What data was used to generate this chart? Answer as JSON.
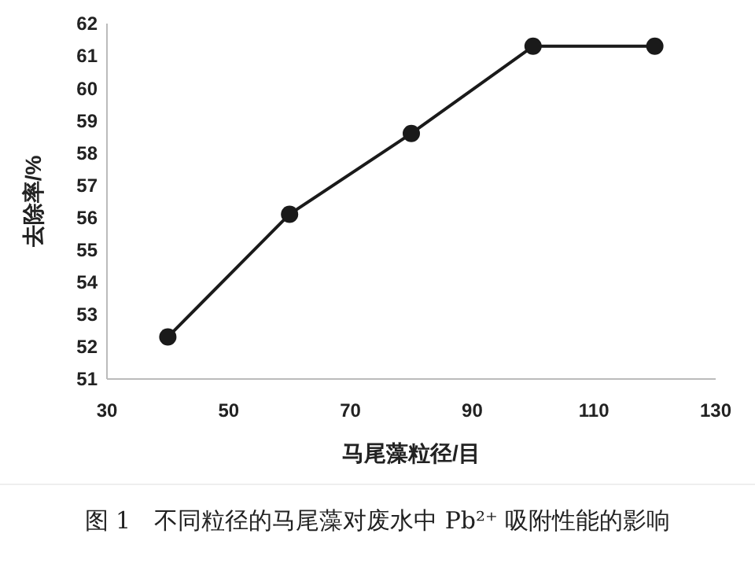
{
  "chart_data": {
    "type": "line",
    "xlabel": "马尾藻粒径/目",
    "ylabel": "去除率/%",
    "annotations": [
      "图 1　不同粒径的马尾藻对废水中 Pb²⁺ 吸附性能的影响"
    ],
    "x": [
      40,
      60,
      80,
      100,
      120
    ],
    "series": [
      {
        "color": "#1a1a1a",
        "values": [
          52.3,
          56.1,
          58.6,
          61.3,
          61.3
        ]
      }
    ],
    "xlim": [
      30,
      130
    ],
    "xticks": [
      30,
      50,
      70,
      90,
      110,
      130
    ],
    "ylim": [
      51,
      62
    ],
    "yticks": [
      51,
      52,
      53,
      54,
      55,
      56,
      57,
      58,
      59,
      60,
      61,
      62
    ],
    "grid": false,
    "marker": "circle",
    "line_style": "solid"
  }
}
